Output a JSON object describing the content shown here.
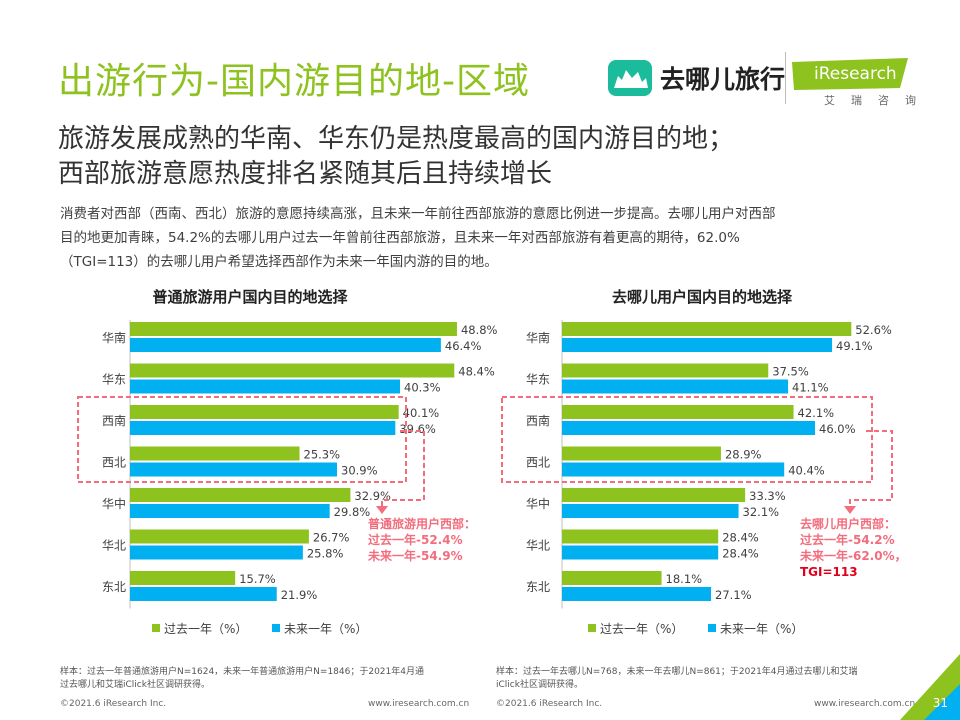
{
  "header": {
    "title": "出游行为-国内游目的地-区域",
    "brand_name": "去哪儿旅行",
    "iresearch_name": "iResearch",
    "iresearch_cn": "艾瑞咨询"
  },
  "subtitle": {
    "line1": "旅游发展成熟的华南、华东仍是热度最高的国内游目的地；",
    "line2": "西部旅游意愿热度排名紧随其后且持续增长"
  },
  "description": {
    "line1": "消费者对西部（西南、西北）旅游的意愿持续高涨，且未来一年前往西部旅游的意愿比例进一步提高。去哪儿用户对西部",
    "line2": "目的地更加青睐，54.2%的去哪儿用户过去一年曾前往西部旅游，且未来一年对西部旅游有着更高的期待，62.0%",
    "line3": "（TGI=113）的去哪儿用户希望选择西部作为未来一年国内游的目的地。"
  },
  "chart_data": [
    {
      "type": "bar",
      "orientation": "horizontal",
      "title": "普通旅游用户国内目的地选择",
      "categories": [
        "华南",
        "华东",
        "西南",
        "西北",
        "华中",
        "华北",
        "东北"
      ],
      "series": [
        {
          "name": "过去一年（%）",
          "values": [
            48.8,
            48.4,
            40.1,
            25.3,
            32.9,
            26.7,
            15.7
          ],
          "color": "#8dc21f"
        },
        {
          "name": "未来一年（%）",
          "values": [
            46.4,
            40.3,
            39.6,
            30.9,
            29.8,
            25.8,
            21.9
          ],
          "color": "#00b0f0"
        }
      ],
      "value_labels": [
        [
          "48.8%",
          "48.4%",
          "40.1%",
          "25.3%",
          "32.9%",
          "26.7%",
          "15.7%"
        ],
        [
          "46.4%",
          "40.3%",
          "39.6%",
          "30.9%",
          "29.8%",
          "25.8%",
          "21.9%"
        ]
      ],
      "xlim": [
        0,
        60
      ],
      "highlight_categories": [
        "西南",
        "西北"
      ],
      "annotation": {
        "lines": [
          "普通旅游用户西部：",
          "过去一年-52.4%",
          "未来一年-54.9%"
        ],
        "color": "#f26d7d"
      }
    },
    {
      "type": "bar",
      "orientation": "horizontal",
      "title": "去哪儿用户国内目的地选择",
      "categories": [
        "华南",
        "华东",
        "西南",
        "西北",
        "华中",
        "华北",
        "东北"
      ],
      "series": [
        {
          "name": "过去一年（%）",
          "values": [
            52.6,
            37.5,
            42.1,
            28.9,
            33.3,
            28.4,
            18.1
          ],
          "color": "#8dc21f"
        },
        {
          "name": "未来一年（%）",
          "values": [
            49.1,
            41.1,
            46.0,
            40.4,
            32.1,
            28.4,
            27.1
          ],
          "color": "#00b0f0"
        }
      ],
      "value_labels": [
        [
          "52.6%",
          "37.5%",
          "42.1%",
          "28.9%",
          "33.3%",
          "28.4%",
          "18.1%"
        ],
        [
          "49.1%",
          "41.1%",
          "46.0%",
          "40.4%",
          "32.1%",
          "28.4%",
          "27.1%"
        ]
      ],
      "xlim": [
        0,
        60
      ],
      "highlight_categories": [
        "西南",
        "西北"
      ],
      "annotation": {
        "lines": [
          "去哪儿用户西部：",
          "过去一年-54.2%",
          "未来一年-62.0%，",
          "TGI=113"
        ],
        "color": "#f26d7d",
        "last_line_color": "#e0001b"
      }
    }
  ],
  "footer": {
    "note_left_1": "样本：过去一年普通旅游用户N=1624，未来一年普通旅游用户N=1846；于2021年4月通",
    "note_left_2": "过去哪儿和艾瑞iClick社区调研获得。",
    "note_right_1": "样本：过去一年去哪儿N=768，未来一年去哪儿N=861；于2021年4月通过去哪儿和艾瑞",
    "note_right_2": "iClick社区调研获得。",
    "copyright": "©2021.6 iResearch Inc.",
    "website": "www.iresearch.com.cn",
    "page_number": "31"
  },
  "colors": {
    "green": "#8dc21f",
    "blue": "#00b0f0",
    "annotation": "#f26d7d",
    "tgi": "#e0001b"
  }
}
